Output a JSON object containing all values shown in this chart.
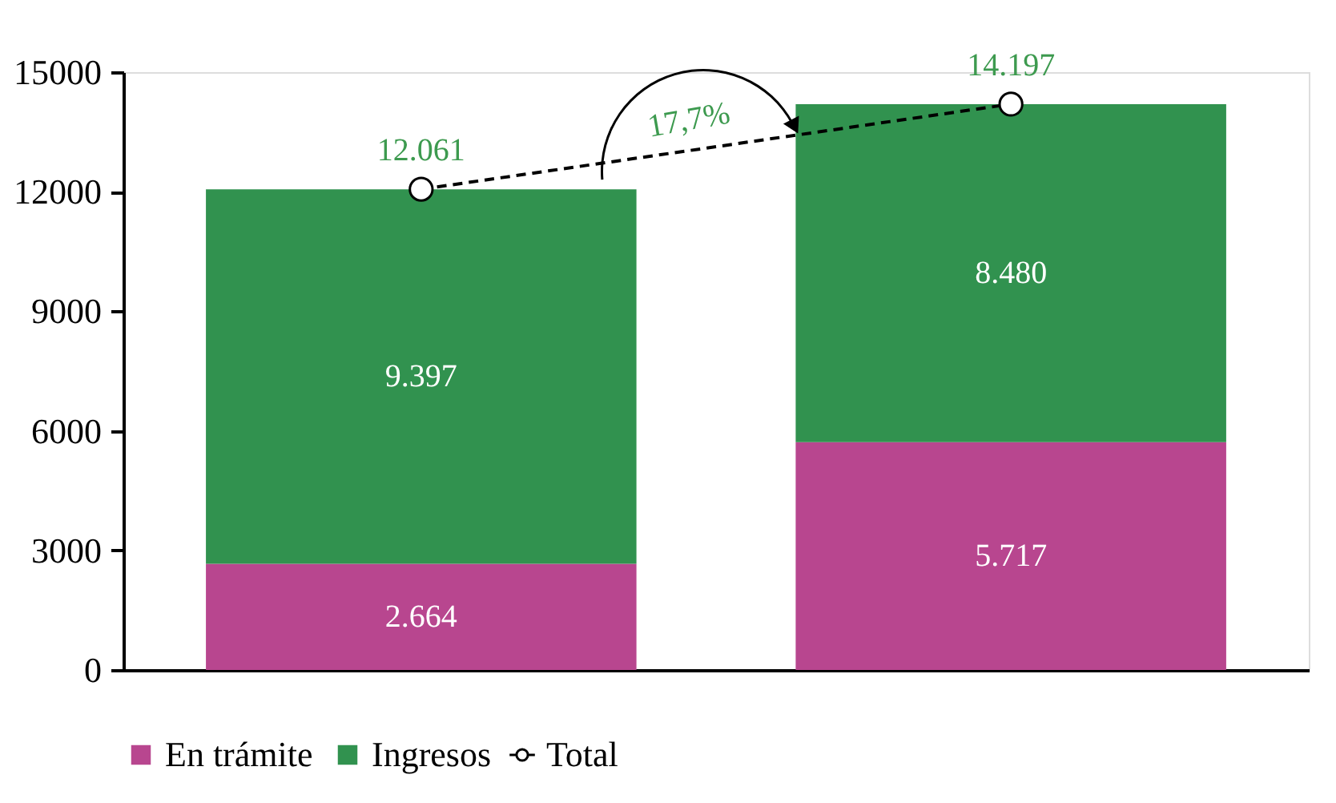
{
  "chart_data": {
    "type": "bar",
    "stacked": true,
    "categories": [
      null,
      null
    ],
    "ylim": [
      0,
      15000
    ],
    "yticks": [
      0,
      3000,
      6000,
      9000,
      12000,
      15000
    ],
    "grid": false,
    "legend": "bottom left",
    "series": [
      {
        "name": "En trámite",
        "color": "#b8468f",
        "values": [
          2664,
          5717
        ],
        "value_labels": [
          "2.664",
          "5.717"
        ]
      },
      {
        "name": "Ingresos",
        "color": "#31924f",
        "values": [
          9397,
          8480
        ],
        "value_labels": [
          "9.397",
          "8.480"
        ]
      },
      {
        "name": "Total",
        "type": "line",
        "color": "#000000",
        "values": [
          12061,
          14197
        ],
        "value_labels": [
          "12.061",
          "14.197"
        ],
        "line_style": "dashed",
        "marker": "circle"
      }
    ],
    "annotations": [
      "17,7%"
    ]
  }
}
